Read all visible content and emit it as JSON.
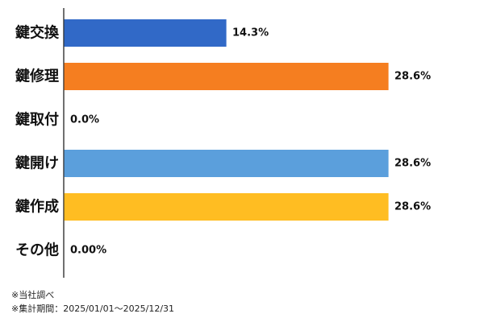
{
  "chart_data": {
    "type": "bar",
    "orientation": "horizontal",
    "categories": [
      "鍵交換",
      "鍵修理",
      "鍵取付",
      "鍵開け",
      "鍵作成",
      "その他"
    ],
    "values": [
      14.3,
      28.6,
      0.0,
      28.6,
      28.6,
      0.0
    ],
    "value_labels": [
      "14.3%",
      "28.6%",
      "0.0%",
      "28.6%",
      "28.6%",
      "0.00%"
    ],
    "colors": [
      "#3169c7",
      "#f57e20",
      "#9e9e9e",
      "#5b9fdc",
      "#ffbd22",
      "#9e9e9e"
    ],
    "xlim": [
      0,
      28.6
    ],
    "grid": false,
    "legend": "none"
  },
  "notes": [
    "※当社調べ",
    "※集計期間：2025/01/01～2025/12/31"
  ]
}
